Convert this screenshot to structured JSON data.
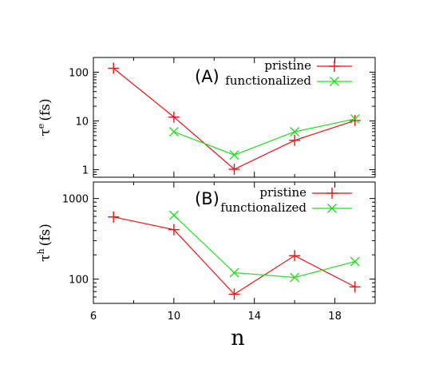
{
  "chart_data": [
    {
      "type": "line",
      "panel_label": "(A)",
      "ylabel_main": "τ",
      "ylabel_sup": "e",
      "ylabel_unit": "(fs)",
      "yscale": "log",
      "ylim": [
        0.7,
        200
      ],
      "xlim": [
        6,
        20
      ],
      "yticks": [
        1,
        10,
        100
      ],
      "ytick_labels": [
        "1",
        "10",
        "100"
      ],
      "legend_position": "top-right",
      "series": [
        {
          "name": "pristine",
          "color": "#ee1111",
          "marker": "plus",
          "x": [
            7,
            10,
            13,
            16,
            19
          ],
          "y": [
            120,
            12,
            1.02,
            4,
            10.2
          ]
        },
        {
          "name": "functionalized",
          "color": "#22dd22",
          "marker": "cross",
          "x": [
            10,
            13,
            16,
            19
          ],
          "y": [
            6,
            2,
            6,
            11
          ]
        }
      ]
    },
    {
      "type": "line",
      "panel_label": "(B)",
      "ylabel_main": "τ",
      "ylabel_sup": "h",
      "ylabel_unit": "(fs)",
      "yscale": "log",
      "ylim": [
        50,
        1600
      ],
      "xlim": [
        6,
        20
      ],
      "yticks": [
        100,
        1000
      ],
      "ytick_labels": [
        "100",
        "1000"
      ],
      "xticks": [
        6,
        10,
        14,
        18
      ],
      "xtick_labels": [
        "6",
        "10",
        "14",
        "18"
      ],
      "xlabel": "n",
      "legend_position": "top-right",
      "series": [
        {
          "name": "pristine",
          "color": "#ee1111",
          "marker": "plus",
          "x": [
            7,
            10,
            13,
            16,
            19
          ],
          "y": [
            590,
            410,
            65,
            195,
            80
          ]
        },
        {
          "name": "functionalized",
          "color": "#22dd22",
          "marker": "cross",
          "x": [
            10,
            13,
            16,
            19
          ],
          "y": [
            620,
            120,
            105,
            165
          ]
        }
      ]
    }
  ]
}
